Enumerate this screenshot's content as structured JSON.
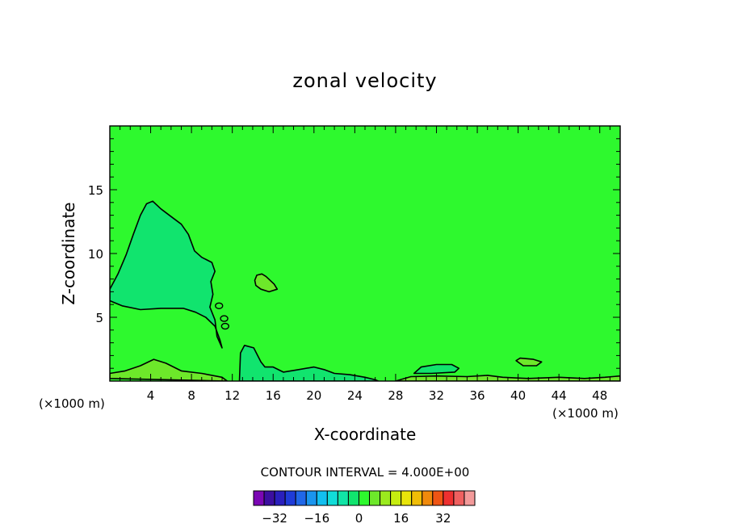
{
  "chart_data": {
    "type": "contour",
    "title": "zonal velocity",
    "xlabel": "X-coordinate",
    "ylabel": "Z-coordinate",
    "x_unit_label": "(×1000 m)",
    "x_unit_label_right": "(×1000 m)",
    "xlim": [
      0,
      50
    ],
    "ylim": [
      0,
      20
    ],
    "xticks": [
      4,
      8,
      12,
      16,
      20,
      24,
      28,
      32,
      36,
      40,
      44,
      48
    ],
    "yticks": [
      5,
      10,
      15
    ],
    "contour_interval_text": "CONTOUR INTERVAL = 4.000E+00",
    "background_level": 0,
    "background_color": "#2ef92e",
    "regions": [
      {
        "name": "negative-lobe",
        "level": -4,
        "color": "#11e46e",
        "points": [
          [
            0,
            7.2
          ],
          [
            0.8,
            8.4
          ],
          [
            1.6,
            9.9
          ],
          [
            2.3,
            11.5
          ],
          [
            3,
            13
          ],
          [
            3.6,
            13.9
          ],
          [
            4.2,
            14.1
          ],
          [
            5,
            13.5
          ],
          [
            6,
            12.9
          ],
          [
            7,
            12.3
          ],
          [
            7.7,
            11.5
          ],
          [
            8.3,
            10.2
          ],
          [
            9,
            9.7
          ],
          [
            10,
            9.3
          ],
          [
            10.3,
            8.6
          ],
          [
            9.9,
            7.8
          ],
          [
            10.1,
            6.8
          ],
          [
            9.8,
            5.8
          ],
          [
            10.3,
            4.8
          ],
          [
            10.5,
            3.5
          ],
          [
            11,
            2.6
          ],
          [
            10.8,
            3.2
          ],
          [
            10.3,
            4.3
          ],
          [
            9.4,
            5
          ],
          [
            8.4,
            5.4
          ],
          [
            7.2,
            5.7
          ],
          [
            5,
            5.7
          ],
          [
            3,
            5.6
          ],
          [
            1.2,
            5.9
          ],
          [
            0,
            6.3
          ]
        ]
      },
      {
        "name": "negative-near-surface",
        "level": -4,
        "color": "#11e46e",
        "points": [
          [
            12.7,
            0
          ],
          [
            12.8,
            2.2
          ],
          [
            13.2,
            2.8
          ],
          [
            14.1,
            2.6
          ],
          [
            14.8,
            1.5
          ],
          [
            15.2,
            1.1
          ],
          [
            16,
            1.1
          ],
          [
            17,
            0.7
          ],
          [
            18.5,
            0.9
          ],
          [
            20,
            1.1
          ],
          [
            21,
            0.9
          ],
          [
            22,
            0.6
          ],
          [
            23.5,
            0.5
          ],
          [
            25,
            0.3
          ],
          [
            26,
            0.1
          ],
          [
            26.3,
            0
          ]
        ]
      },
      {
        "name": "negative-small-1",
        "level": -4,
        "color": "#11e46e",
        "points": [
          [
            29.8,
            0.6
          ],
          [
            30.5,
            1.1
          ],
          [
            32,
            1.3
          ],
          [
            33.5,
            1.3
          ],
          [
            34.2,
            1.0
          ],
          [
            33.8,
            0.7
          ],
          [
            31.5,
            0.6
          ]
        ]
      },
      {
        "name": "positive-lobe-upper",
        "level": 4,
        "color": "#6de82a",
        "points": [
          [
            14.2,
            7.9
          ],
          [
            14.4,
            8.3
          ],
          [
            14.9,
            8.4
          ],
          [
            15.3,
            8.2
          ],
          [
            16.1,
            7.6
          ],
          [
            16.4,
            7.2
          ],
          [
            15.6,
            7.0
          ],
          [
            14.8,
            7.2
          ],
          [
            14.3,
            7.5
          ]
        ]
      },
      {
        "name": "positive-surface-band",
        "level": 4,
        "color": "#6de82a",
        "points": [
          [
            0,
            0.2
          ],
          [
            0,
            0.6
          ],
          [
            1.5,
            0.8
          ],
          [
            3,
            1.2
          ],
          [
            4.3,
            1.7
          ],
          [
            5.5,
            1.4
          ],
          [
            7,
            0.8
          ],
          [
            9,
            0.6
          ],
          [
            11,
            0.3
          ],
          [
            11.5,
            0
          ]
        ]
      },
      {
        "name": "positive-small-1",
        "level": 4,
        "color": "#6de82a",
        "points": [
          [
            39.8,
            1.6
          ],
          [
            40.2,
            1.8
          ],
          [
            41.5,
            1.7
          ],
          [
            42.3,
            1.5
          ],
          [
            41.8,
            1.2
          ],
          [
            40.5,
            1.2
          ]
        ]
      },
      {
        "name": "positive-surface-right",
        "level": 4,
        "color": "#6de82a",
        "points": [
          [
            28,
            0
          ],
          [
            29.5,
            0.35
          ],
          [
            32,
            0.4
          ],
          [
            35,
            0.35
          ],
          [
            37,
            0.45
          ],
          [
            38.5,
            0.3
          ],
          [
            41,
            0.2
          ],
          [
            44,
            0.3
          ],
          [
            46.5,
            0.2
          ],
          [
            48.5,
            0.3
          ],
          [
            50,
            0.4
          ],
          [
            50,
            0
          ]
        ]
      }
    ],
    "colorbar": {
      "colors": [
        "#7b07b4",
        "#3c0fa0",
        "#2a1fbd",
        "#1f3bd8",
        "#2067e8",
        "#1a95ee",
        "#12bff0",
        "#11dcd8",
        "#11e4a6",
        "#11e46e",
        "#2ef92e",
        "#6de82a",
        "#9bea1e",
        "#c6ed10",
        "#e8e40a",
        "#f0bd07",
        "#f08a0c",
        "#ef5514",
        "#ee3030",
        "#ef6060",
        "#f39a9a"
      ],
      "labels": [
        "−32",
        "−16",
        "0",
        "16",
        "32"
      ],
      "label_values": [
        -32,
        -16,
        0,
        16,
        32
      ],
      "vmin": -40,
      "vmax": 44
    }
  }
}
